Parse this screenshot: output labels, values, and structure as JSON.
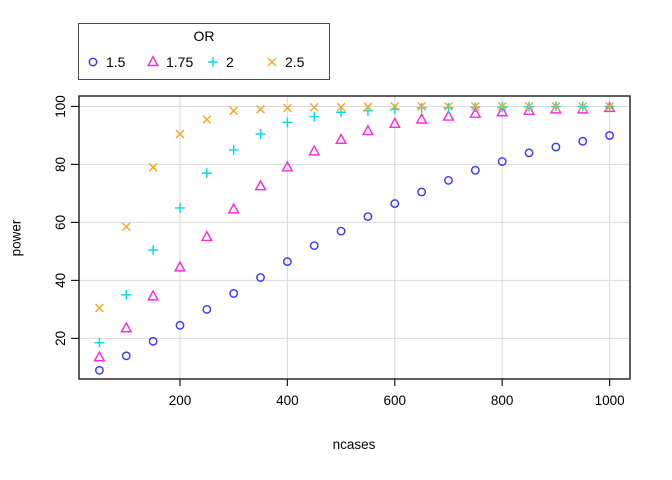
{
  "chart_data": {
    "type": "scatter",
    "title": "",
    "xlabel": "ncases",
    "ylabel": "power",
    "xlim": [
      12,
      1038
    ],
    "ylim": [
      6,
      103.6
    ],
    "x_ticks": [
      200,
      400,
      600,
      800,
      1000
    ],
    "y_ticks": [
      20,
      40,
      60,
      80,
      100
    ],
    "grid": true,
    "legend": {
      "title": "OR",
      "position": "top-left"
    },
    "x": [
      50,
      100,
      150,
      200,
      250,
      300,
      350,
      400,
      450,
      500,
      550,
      600,
      650,
      700,
      750,
      800,
      850,
      900,
      950,
      1000
    ],
    "series": [
      {
        "name": "1.5",
        "marker": "circle",
        "color": "#3a3af0",
        "values": [
          9,
          14,
          19,
          24.5,
          30,
          35.5,
          41,
          46.5,
          52,
          57,
          62,
          66.5,
          70.5,
          74.5,
          78,
          81,
          84,
          86,
          88,
          90
        ]
      },
      {
        "name": "1.75",
        "marker": "triangle",
        "color": "#f62ce0",
        "values": [
          13.5,
          23.5,
          34.5,
          44.5,
          55,
          64.5,
          72.5,
          79,
          84.5,
          88.5,
          91.5,
          94,
          95.5,
          96.5,
          97.5,
          98,
          98.5,
          99,
          99,
          99.5
        ]
      },
      {
        "name": "2",
        "marker": "plus",
        "color": "#00dde6",
        "values": [
          18.5,
          35,
          50.5,
          65,
          77,
          85,
          90.5,
          94.5,
          96.5,
          98,
          98.5,
          99,
          99.5,
          99.5,
          99.7,
          99.8,
          99.9,
          100,
          100,
          100
        ]
      },
      {
        "name": "2.5",
        "marker": "cross",
        "color": "#f8a62a",
        "values": [
          30.5,
          58.5,
          79,
          90.5,
          95.5,
          98.5,
          99,
          99.5,
          99.7,
          99.8,
          99.9,
          100,
          100,
          100,
          100,
          100,
          100,
          100,
          100,
          100
        ]
      }
    ],
    "colors": {
      "grid": "#d9d9d9",
      "axis": "#1a1a1a",
      "text": "#000000",
      "background": "#ffffff"
    }
  }
}
